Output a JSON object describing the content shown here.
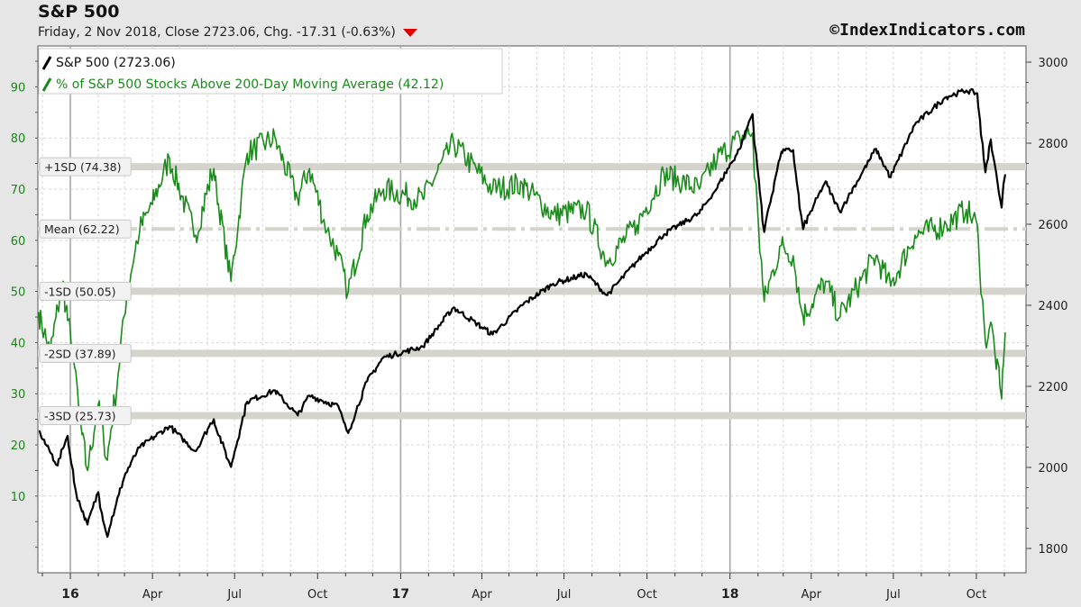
{
  "header": {
    "title": "S&P 500",
    "subtitle": "Friday, 2 Nov 2018, Close 2723.06, Chg. -17.31 (-0.63%)",
    "brand": "©IndexIndicators.com"
  },
  "colors": {
    "background": "#e6e6e6",
    "plot_background": "#ffffff",
    "sp500": "#000000",
    "pct_above_200dma": "#1a8a1a",
    "sd_band": "#d4d4cc",
    "down_arrow": "#e00000"
  },
  "chart_data": {
    "type": "line",
    "grid": true,
    "legend_placement": "top-left",
    "x_ticks": [
      "16",
      "Apr",
      "Jul",
      "Oct",
      "17",
      "Apr",
      "Jul",
      "Oct",
      "18",
      "Apr",
      "Jul",
      "Oct"
    ],
    "x_major_ticks": [
      "16",
      "17",
      "18"
    ],
    "y_left": {
      "ticks": [
        10,
        20,
        30,
        40,
        50,
        60,
        70,
        80,
        90
      ],
      "range": [
        -5,
        98
      ]
    },
    "y_right": {
      "ticks": [
        1800,
        2000,
        2200,
        2400,
        2600,
        2800,
        3000
      ],
      "range": [
        1740,
        3040
      ]
    },
    "x_range": [
      "2015-11-26",
      "2018-11-25"
    ],
    "reference_lines": [
      {
        "label": "+1SD (74.38)",
        "value": 74.38,
        "style": "band"
      },
      {
        "label": "Mean (62.22)",
        "value": 62.22,
        "style": "dashdot"
      },
      {
        "label": "-1SD (50.05)",
        "value": 50.05,
        "style": "band"
      },
      {
        "label": "-2SD (37.89)",
        "value": 37.89,
        "style": "band"
      },
      {
        "label": "-3SD (25.73)",
        "value": 25.73,
        "style": "band"
      }
    ],
    "series": [
      {
        "name": "S&P 500 (2723.06)",
        "axis": "right",
        "points": [
          [
            "2015-11-27",
            2090
          ],
          [
            "2015-12-18",
            2005
          ],
          [
            "2015-12-29",
            2078
          ],
          [
            "2016-01-07",
            1943
          ],
          [
            "2016-01-20",
            1859
          ],
          [
            "2016-02-01",
            1939
          ],
          [
            "2016-02-11",
            1829
          ],
          [
            "2016-03-01",
            1978
          ],
          [
            "2016-03-18",
            2049
          ],
          [
            "2016-04-20",
            2102
          ],
          [
            "2016-05-19",
            2040
          ],
          [
            "2016-06-08",
            2119
          ],
          [
            "2016-06-27",
            2001
          ],
          [
            "2016-07-15",
            2162
          ],
          [
            "2016-08-15",
            2190
          ],
          [
            "2016-09-09",
            2128
          ],
          [
            "2016-09-22",
            2177
          ],
          [
            "2016-10-24",
            2151
          ],
          [
            "2016-11-04",
            2085
          ],
          [
            "2016-11-25",
            2213
          ],
          [
            "2016-12-13",
            2271
          ],
          [
            "2017-01-26",
            2298
          ],
          [
            "2017-03-01",
            2395
          ],
          [
            "2017-04-13",
            2328
          ],
          [
            "2017-05-16",
            2400
          ],
          [
            "2017-06-19",
            2453
          ],
          [
            "2017-07-26",
            2477
          ],
          [
            "2017-08-18",
            2425
          ],
          [
            "2017-09-20",
            2508
          ],
          [
            "2017-10-20",
            2575
          ],
          [
            "2017-11-28",
            2627
          ],
          [
            "2017-12-18",
            2690
          ],
          [
            "2018-01-12",
            2786
          ],
          [
            "2018-01-26",
            2872
          ],
          [
            "2018-02-08",
            2581
          ],
          [
            "2018-02-27",
            2779
          ],
          [
            "2018-03-12",
            2783
          ],
          [
            "2018-03-23",
            2588
          ],
          [
            "2018-04-17",
            2706
          ],
          [
            "2018-05-03",
            2630
          ],
          [
            "2018-06-12",
            2786
          ],
          [
            "2018-06-28",
            2716
          ],
          [
            "2018-07-25",
            2846
          ],
          [
            "2018-08-29",
            2914
          ],
          [
            "2018-09-20",
            2930
          ],
          [
            "2018-10-02",
            2923
          ],
          [
            "2018-10-11",
            2728
          ],
          [
            "2018-10-17",
            2809
          ],
          [
            "2018-10-29",
            2641
          ],
          [
            "2018-11-02",
            2723
          ]
        ]
      },
      {
        "name": "% of S&P 500 Stocks Above 200-Day Moving Average (42.12)",
        "axis": "left",
        "points": [
          [
            "2015-11-27",
            46
          ],
          [
            "2015-12-10",
            38
          ],
          [
            "2015-12-24",
            52
          ],
          [
            "2016-01-06",
            35
          ],
          [
            "2016-01-14",
            22
          ],
          [
            "2016-01-20",
            15
          ],
          [
            "2016-02-01",
            28
          ],
          [
            "2016-02-11",
            17
          ],
          [
            "2016-02-22",
            32
          ],
          [
            "2016-03-04",
            50
          ],
          [
            "2016-03-18",
            62
          ],
          [
            "2016-04-01",
            67
          ],
          [
            "2016-04-20",
            76
          ],
          [
            "2016-05-19",
            61
          ],
          [
            "2016-06-08",
            74
          ],
          [
            "2016-06-27",
            52
          ],
          [
            "2016-07-15",
            77
          ],
          [
            "2016-08-15",
            80
          ],
          [
            "2016-09-09",
            68
          ],
          [
            "2016-09-22",
            74
          ],
          [
            "2016-10-12",
            62
          ],
          [
            "2016-10-24",
            57
          ],
          [
            "2016-11-04",
            50
          ],
          [
            "2016-11-25",
            65
          ],
          [
            "2016-12-13",
            70
          ],
          [
            "2017-01-26",
            68
          ],
          [
            "2017-03-01",
            79
          ],
          [
            "2017-04-13",
            70
          ],
          [
            "2017-05-16",
            71
          ],
          [
            "2017-06-19",
            65
          ],
          [
            "2017-07-26",
            66
          ],
          [
            "2017-08-18",
            56
          ],
          [
            "2017-09-20",
            63
          ],
          [
            "2017-10-20",
            73
          ],
          [
            "2017-11-28",
            70
          ],
          [
            "2017-12-18",
            76
          ],
          [
            "2018-01-12",
            80
          ],
          [
            "2018-01-26",
            81
          ],
          [
            "2018-02-08",
            48
          ],
          [
            "2018-02-27",
            59
          ],
          [
            "2018-03-12",
            57
          ],
          [
            "2018-03-23",
            45
          ],
          [
            "2018-04-17",
            52
          ],
          [
            "2018-05-03",
            45
          ],
          [
            "2018-06-12",
            57
          ],
          [
            "2018-06-28",
            51
          ],
          [
            "2018-07-25",
            61
          ],
          [
            "2018-08-29",
            63
          ],
          [
            "2018-09-20",
            66
          ],
          [
            "2018-10-02",
            63
          ],
          [
            "2018-10-11",
            40
          ],
          [
            "2018-10-17",
            44
          ],
          [
            "2018-10-29",
            29
          ],
          [
            "2018-11-02",
            42
          ]
        ]
      }
    ]
  }
}
